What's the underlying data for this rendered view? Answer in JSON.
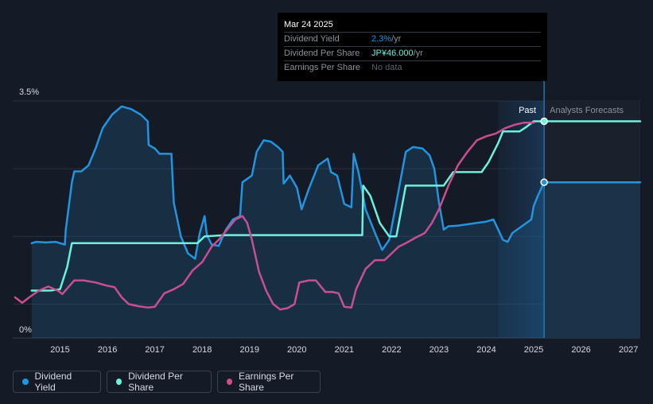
{
  "tooltip": {
    "date": "Mar 24 2025",
    "rows": [
      {
        "label": "Dividend Yield",
        "value": "2.3%",
        "unit": " /yr"
      },
      {
        "label": "Dividend Per Share",
        "value": "JP¥46.000",
        "unit": " /yr"
      },
      {
        "label": "Earnings Per Share",
        "value": "No data",
        "unit": ""
      }
    ]
  },
  "legend": [
    {
      "label": "Dividend Yield",
      "color": "#2394df"
    },
    {
      "label": "Dividend Per Share",
      "color": "#6cf1dc"
    },
    {
      "label": "Earnings Per Share",
      "color": "#c94f8f"
    }
  ],
  "chart_data": {
    "type": "line",
    "y_axis": {
      "top_label": "3.5%",
      "bottom_label": "0%",
      "ylim": [
        0,
        3.5
      ]
    },
    "x_ticks": [
      "2015",
      "2016",
      "2017",
      "2018",
      "2019",
      "2020",
      "2021",
      "2022",
      "2023",
      "2024",
      "2025",
      "2026",
      "2027"
    ],
    "xlim": [
      2014.0,
      2027.25
    ],
    "past_label": "Past",
    "forecast_label": "Analysts Forecasts",
    "forecast_start": 2025.22,
    "shade_start": 2024.25,
    "grid": true,
    "series": [
      {
        "name": "Dividend Yield",
        "color": "#2394df",
        "fill": true,
        "points": [
          [
            2014.4,
            1.4
          ],
          [
            2014.5,
            1.42
          ],
          [
            2014.7,
            1.41
          ],
          [
            2014.9,
            1.42
          ],
          [
            2015.1,
            1.38
          ],
          [
            2015.12,
            1.6
          ],
          [
            2015.25,
            2.3
          ],
          [
            2015.3,
            2.46
          ],
          [
            2015.45,
            2.46
          ],
          [
            2015.6,
            2.55
          ],
          [
            2015.75,
            2.8
          ],
          [
            2015.9,
            3.1
          ],
          [
            2016.1,
            3.3
          ],
          [
            2016.3,
            3.42
          ],
          [
            2016.5,
            3.38
          ],
          [
            2016.7,
            3.3
          ],
          [
            2016.85,
            3.2
          ],
          [
            2016.87,
            2.85
          ],
          [
            2017.0,
            2.8
          ],
          [
            2017.1,
            2.72
          ],
          [
            2017.35,
            2.72
          ],
          [
            2017.4,
            2.0
          ],
          [
            2017.55,
            1.5
          ],
          [
            2017.7,
            1.25
          ],
          [
            2017.85,
            1.17
          ],
          [
            2017.95,
            1.55
          ],
          [
            2018.05,
            1.8
          ],
          [
            2018.1,
            1.52
          ],
          [
            2018.2,
            1.38
          ],
          [
            2018.35,
            1.36
          ],
          [
            2018.5,
            1.6
          ],
          [
            2018.65,
            1.75
          ],
          [
            2018.8,
            1.8
          ],
          [
            2018.85,
            2.3
          ],
          [
            2019.05,
            2.4
          ],
          [
            2019.15,
            2.75
          ],
          [
            2019.3,
            2.92
          ],
          [
            2019.45,
            2.9
          ],
          [
            2019.6,
            2.82
          ],
          [
            2019.7,
            2.75
          ],
          [
            2019.72,
            2.28
          ],
          [
            2019.85,
            2.4
          ],
          [
            2020.0,
            2.22
          ],
          [
            2020.1,
            1.9
          ],
          [
            2020.25,
            2.2
          ],
          [
            2020.45,
            2.55
          ],
          [
            2020.65,
            2.65
          ],
          [
            2020.72,
            2.45
          ],
          [
            2020.85,
            2.4
          ],
          [
            2020.95,
            2.12
          ],
          [
            2021.0,
            1.98
          ],
          [
            2021.15,
            1.93
          ],
          [
            2021.2,
            2.72
          ],
          [
            2021.3,
            2.45
          ],
          [
            2021.45,
            1.9
          ],
          [
            2021.65,
            1.55
          ],
          [
            2021.8,
            1.3
          ],
          [
            2021.95,
            1.45
          ],
          [
            2022.1,
            2.0
          ],
          [
            2022.3,
            2.75
          ],
          [
            2022.45,
            2.82
          ],
          [
            2022.65,
            2.8
          ],
          [
            2022.8,
            2.7
          ],
          [
            2022.9,
            2.5
          ],
          [
            2023.0,
            2.0
          ],
          [
            2023.1,
            1.6
          ],
          [
            2023.2,
            1.65
          ],
          [
            2023.4,
            1.66
          ],
          [
            2023.6,
            1.68
          ],
          [
            2023.8,
            1.7
          ],
          [
            2024.0,
            1.72
          ],
          [
            2024.15,
            1.75
          ],
          [
            2024.25,
            1.6
          ],
          [
            2024.35,
            1.45
          ],
          [
            2024.45,
            1.42
          ],
          [
            2024.55,
            1.55
          ],
          [
            2024.75,
            1.65
          ],
          [
            2024.95,
            1.75
          ],
          [
            2025.0,
            1.95
          ],
          [
            2025.1,
            2.12
          ],
          [
            2025.22,
            2.3
          ],
          [
            2027.25,
            2.3
          ]
        ]
      },
      {
        "name": "Dividend Per Share",
        "color": "#6cf1dc",
        "fill": false,
        "points": [
          [
            2014.4,
            0.7
          ],
          [
            2014.6,
            0.7
          ],
          [
            2014.8,
            0.7
          ],
          [
            2015.0,
            0.72
          ],
          [
            2015.15,
            1.05
          ],
          [
            2015.25,
            1.4
          ],
          [
            2015.6,
            1.4
          ],
          [
            2016.0,
            1.4
          ],
          [
            2016.5,
            1.4
          ],
          [
            2017.0,
            1.4
          ],
          [
            2017.5,
            1.4
          ],
          [
            2017.9,
            1.4
          ],
          [
            2018.05,
            1.5
          ],
          [
            2018.5,
            1.52
          ],
          [
            2019.0,
            1.52
          ],
          [
            2019.5,
            1.52
          ],
          [
            2020.0,
            1.52
          ],
          [
            2020.5,
            1.52
          ],
          [
            2021.0,
            1.52
          ],
          [
            2021.38,
            1.52
          ],
          [
            2021.4,
            2.25
          ],
          [
            2021.55,
            2.1
          ],
          [
            2021.75,
            1.7
          ],
          [
            2021.95,
            1.5
          ],
          [
            2022.1,
            1.5
          ],
          [
            2022.3,
            2.25
          ],
          [
            2022.5,
            2.25
          ],
          [
            2022.9,
            2.25
          ],
          [
            2023.1,
            2.25
          ],
          [
            2023.3,
            2.45
          ],
          [
            2023.5,
            2.45
          ],
          [
            2023.9,
            2.45
          ],
          [
            2024.05,
            2.6
          ],
          [
            2024.25,
            2.88
          ],
          [
            2024.35,
            3.05
          ],
          [
            2024.5,
            3.05
          ],
          [
            2024.7,
            3.05
          ],
          [
            2024.85,
            3.12
          ],
          [
            2025.0,
            3.2
          ],
          [
            2025.22,
            3.2
          ],
          [
            2027.25,
            3.2
          ]
        ]
      },
      {
        "name": "Earnings Per Share",
        "color": "#c94f8f",
        "fill": false,
        "points": [
          [
            2014.05,
            0.6
          ],
          [
            2014.2,
            0.52
          ],
          [
            2014.35,
            0.6
          ],
          [
            2014.55,
            0.7
          ],
          [
            2014.75,
            0.76
          ],
          [
            2014.95,
            0.7
          ],
          [
            2015.05,
            0.65
          ],
          [
            2015.3,
            0.85
          ],
          [
            2015.5,
            0.85
          ],
          [
            2015.75,
            0.82
          ],
          [
            2015.95,
            0.78
          ],
          [
            2016.15,
            0.75
          ],
          [
            2016.3,
            0.6
          ],
          [
            2016.45,
            0.5
          ],
          [
            2016.65,
            0.47
          ],
          [
            2016.85,
            0.45
          ],
          [
            2017.0,
            0.46
          ],
          [
            2017.2,
            0.66
          ],
          [
            2017.4,
            0.72
          ],
          [
            2017.6,
            0.8
          ],
          [
            2017.8,
            1.0
          ],
          [
            2018.0,
            1.12
          ],
          [
            2018.2,
            1.35
          ],
          [
            2018.35,
            1.45
          ],
          [
            2018.55,
            1.62
          ],
          [
            2018.7,
            1.75
          ],
          [
            2018.85,
            1.8
          ],
          [
            2018.95,
            1.7
          ],
          [
            2019.05,
            1.45
          ],
          [
            2019.2,
            0.98
          ],
          [
            2019.35,
            0.7
          ],
          [
            2019.5,
            0.5
          ],
          [
            2019.65,
            0.42
          ],
          [
            2019.8,
            0.44
          ],
          [
            2019.95,
            0.5
          ],
          [
            2020.05,
            0.82
          ],
          [
            2020.25,
            0.85
          ],
          [
            2020.4,
            0.85
          ],
          [
            2020.6,
            0.68
          ],
          [
            2020.75,
            0.68
          ],
          [
            2020.88,
            0.66
          ],
          [
            2021.0,
            0.46
          ],
          [
            2021.15,
            0.45
          ],
          [
            2021.25,
            0.72
          ],
          [
            2021.45,
            1.02
          ],
          [
            2021.65,
            1.15
          ],
          [
            2021.85,
            1.15
          ],
          [
            2022.0,
            1.25
          ],
          [
            2022.15,
            1.35
          ],
          [
            2022.3,
            1.4
          ],
          [
            2022.5,
            1.48
          ],
          [
            2022.7,
            1.55
          ],
          [
            2022.85,
            1.7
          ],
          [
            2023.0,
            1.9
          ],
          [
            2023.2,
            2.25
          ],
          [
            2023.4,
            2.55
          ],
          [
            2023.6,
            2.75
          ],
          [
            2023.8,
            2.92
          ],
          [
            2024.0,
            2.98
          ],
          [
            2024.2,
            3.02
          ],
          [
            2024.4,
            3.1
          ],
          [
            2024.6,
            3.15
          ],
          [
            2024.8,
            3.18
          ],
          [
            2025.0,
            3.18
          ]
        ]
      }
    ]
  }
}
